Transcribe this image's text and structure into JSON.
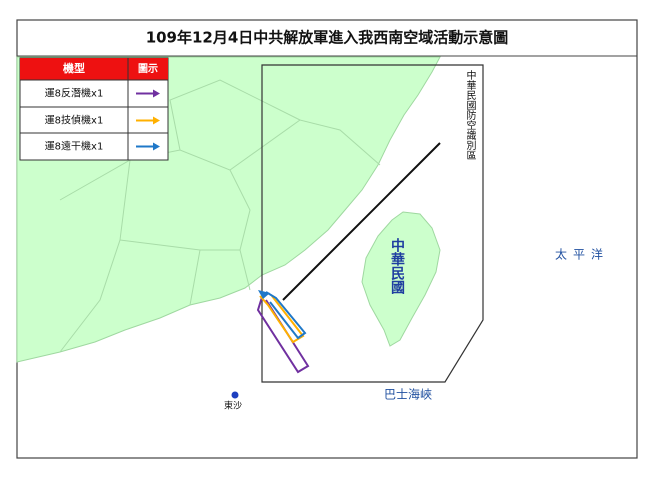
{
  "header": {
    "title": "109年12月4日中共解放軍進入我西南空域活動示意圖"
  },
  "legend": {
    "columns": [
      "機型",
      "圖示"
    ],
    "rows": [
      {
        "name": "運8反潛機x1",
        "color": "#7030a0"
      },
      {
        "name": "運8技偵機x1",
        "color": "#ffb000"
      },
      {
        "name": "運8遠干機x1",
        "color": "#1f78c8"
      }
    ]
  },
  "map": {
    "adiz_label": "中華民國防空識別區",
    "taiwan_label": "中華民國",
    "ocean_label": "太平洋",
    "strait_label": "巴士海峽",
    "dongsha_label": "東沙"
  }
}
